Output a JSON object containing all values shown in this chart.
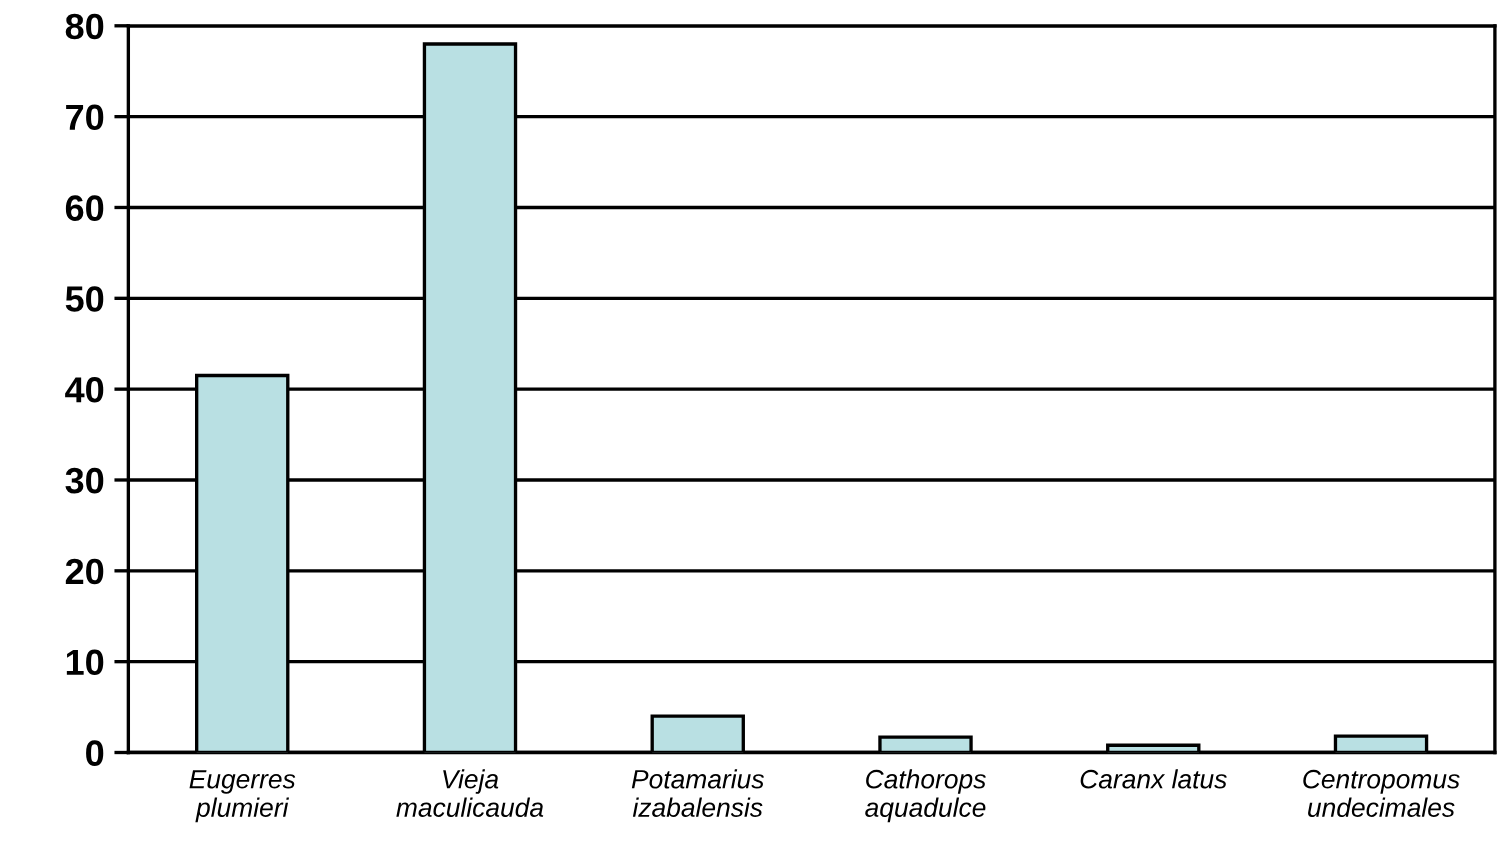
{
  "chart_data": {
    "type": "bar",
    "categories": [
      "Eugerres\nplumieri",
      "Vieja\nmaculicauda",
      "Potamarius\nizabalensis",
      "Cathorops\naquadulce",
      "Caranx latus",
      "Centropomus\nundecimales"
    ],
    "values": [
      41.5,
      78,
      4,
      1.7,
      0.8,
      1.8
    ],
    "color": "#b9e0e3",
    "ylim": [
      0,
      80
    ],
    "yticks": [
      0,
      10,
      20,
      30,
      40,
      50,
      60,
      70,
      80
    ],
    "grid": "y"
  }
}
